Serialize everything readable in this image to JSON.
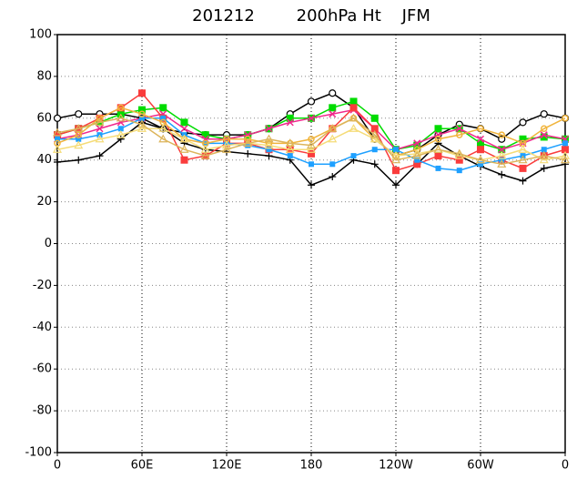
{
  "chart_data": {
    "type": "line",
    "title": "201212        200hPa Ht    JFM",
    "x": [
      0,
      15,
      30,
      45,
      60,
      75,
      90,
      105,
      120,
      135,
      150,
      165,
      180,
      195,
      210,
      225,
      240,
      255,
      270,
      285,
      300,
      315,
      330,
      345,
      360
    ],
    "xlim": [
      0,
      360
    ],
    "xticks": [
      0,
      {
        "value": 60,
        "label": "60E"
      },
      {
        "value": 120,
        "label": "120E"
      },
      180,
      {
        "value": 240,
        "label": "120W"
      },
      {
        "value": 300,
        "label": "60W"
      },
      {
        "value": 360,
        "label": "0"
      }
    ],
    "ylim": [
      -100,
      100
    ],
    "yticks": [
      -100,
      -80,
      -60,
      -40,
      -20,
      0,
      20,
      40,
      60,
      80,
      100
    ],
    "grid": true,
    "series": [
      {
        "color": "#000000",
        "marker": "circle",
        "values": [
          60,
          62,
          62,
          62,
          60,
          55,
          53,
          52,
          52,
          52,
          55,
          62,
          68,
          72,
          65,
          50,
          42,
          45,
          52,
          57,
          55,
          50,
          58,
          62,
          60
        ]
      },
      {
        "color": "#000000",
        "marker": "plus",
        "values": [
          39,
          40,
          42,
          50,
          58,
          55,
          48,
          45,
          44,
          43,
          42,
          40,
          28,
          32,
          40,
          38,
          28,
          38,
          48,
          42,
          37,
          33,
          30,
          36,
          38
        ]
      },
      {
        "color": "#00dc00",
        "marker": "square",
        "values": [
          52,
          55,
          58,
          62,
          64,
          65,
          58,
          52,
          50,
          52,
          55,
          60,
          60,
          65,
          68,
          60,
          45,
          47,
          55,
          55,
          48,
          45,
          50,
          51,
          50
        ]
      },
      {
        "color": "#f0288c",
        "marker": "cross",
        "values": [
          50,
          52,
          55,
          58,
          60,
          62,
          55,
          50,
          50,
          52,
          55,
          58,
          60,
          62,
          64,
          55,
          45,
          48,
          52,
          55,
          50,
          45,
          48,
          52,
          50
        ]
      },
      {
        "color": "#fa3c3c",
        "marker": "square",
        "values": [
          52,
          55,
          60,
          65,
          72,
          60,
          40,
          42,
          48,
          48,
          45,
          45,
          43,
          55,
          65,
          55,
          35,
          38,
          42,
          40,
          45,
          40,
          36,
          42,
          45
        ]
      },
      {
        "color": "#1ea0ff",
        "marker": "square-small",
        "values": [
          50,
          50,
          52,
          55,
          60,
          60,
          52,
          48,
          48,
          47,
          45,
          42,
          38,
          38,
          42,
          45,
          45,
          40,
          36,
          35,
          38,
          40,
          42,
          45,
          48
        ]
      },
      {
        "color": "#f0b43c",
        "marker": "circle-small",
        "values": [
          48,
          52,
          60,
          65,
          62,
          58,
          50,
          48,
          50,
          50,
          48,
          48,
          50,
          55,
          60,
          50,
          42,
          45,
          50,
          52,
          55,
          52,
          48,
          55,
          60
        ]
      },
      {
        "color": "#f5dc78",
        "marker": "triangle",
        "values": [
          45,
          47,
          50,
          52,
          55,
          55,
          50,
          45,
          47,
          48,
          47,
          45,
          45,
          50,
          55,
          50,
          42,
          43,
          45,
          42,
          40,
          42,
          45,
          40,
          42
        ]
      },
      {
        "color": "#dcb45a",
        "marker": "triangle",
        "values": [
          53,
          55,
          58,
          60,
          57,
          50,
          45,
          42,
          45,
          48,
          50,
          48,
          47,
          55,
          60,
          52,
          40,
          42,
          45,
          43,
          40,
          38,
          40,
          42,
          40
        ]
      }
    ]
  }
}
